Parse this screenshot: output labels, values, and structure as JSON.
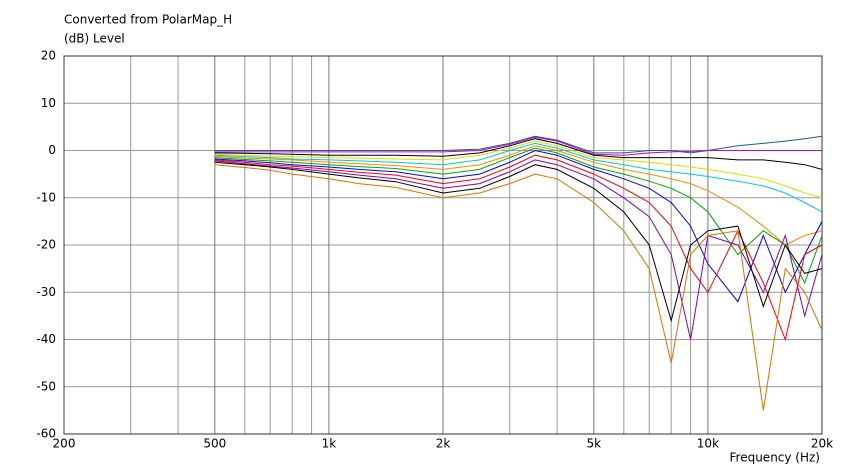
{
  "chart_data": {
    "type": "line",
    "title": "Converted from PolarMap_H",
    "ylabel": "(dB)  Level",
    "xlabel": "Frequency  (Hz)",
    "xlog": true,
    "grid": true,
    "xlim": [
      200,
      20000
    ],
    "ylim": [
      -60,
      20
    ],
    "yticks": [
      20,
      10,
      0,
      -10,
      -20,
      -30,
      -40,
      -50,
      -60
    ],
    "xticks": [
      200,
      500,
      {
        "value": 1000,
        "label": "1k"
      },
      {
        "value": 2000,
        "label": "2k"
      },
      {
        "value": 5000,
        "label": "5k"
      },
      {
        "value": 10000,
        "label": "10k"
      },
      {
        "value": 20000,
        "label": "20k"
      }
    ],
    "xminor": [
      300,
      400,
      600,
      700,
      800,
      900,
      3000,
      4000,
      6000,
      7000,
      8000,
      9000
    ],
    "x": [
      500,
      600,
      700,
      800,
      1000,
      1200,
      1500,
      2000,
      2500,
      3000,
      3500,
      4000,
      5000,
      6000,
      7000,
      8000,
      9000,
      10000,
      12000,
      14000,
      16000,
      18000,
      20000
    ],
    "series": [
      {
        "color": "#1f5c8c",
        "values": [
          0,
          0,
          0,
          0,
          0,
          0,
          0,
          0,
          0.3,
          1.5,
          3,
          2.2,
          -0.5,
          -0.5,
          0,
          0,
          -0.5,
          0,
          1,
          1.5,
          2,
          2.5,
          3
        ]
      },
      {
        "color": "#cc00cc",
        "values": [
          -0.3,
          -0.3,
          -0.3,
          -0.3,
          -0.3,
          -0.3,
          -0.3,
          -0.3,
          0,
          1.3,
          2.8,
          2,
          -0.8,
          -1,
          -0.5,
          -0.3,
          -0.2,
          0,
          0,
          0,
          0,
          0,
          0
        ]
      },
      {
        "color": "#000000",
        "values": [
          -0.5,
          -0.6,
          -0.7,
          -0.8,
          -1,
          -1,
          -1,
          -1.2,
          -0.5,
          1,
          2.5,
          1.5,
          -1,
          -1.5,
          -1.5,
          -1.5,
          -1.5,
          -1.5,
          -2,
          -2,
          -2.5,
          -3,
          -4
        ]
      },
      {
        "color": "#dddd00",
        "values": [
          -0.8,
          -1,
          -1.2,
          -1.3,
          -1.5,
          -1.6,
          -1.8,
          -2,
          -1,
          0.5,
          2,
          1,
          -1.5,
          -2,
          -2.5,
          -3,
          -3.5,
          -4,
          -5,
          -6,
          -7.5,
          -9,
          -10
        ]
      },
      {
        "color": "#00cccc",
        "values": [
          -1,
          -1.3,
          -1.5,
          -1.8,
          -2,
          -2.2,
          -2.5,
          -3,
          -2,
          0,
          1.5,
          0.5,
          -2,
          -3,
          -4,
          -4.5,
          -5,
          -5.5,
          -6.5,
          -7.5,
          -9,
          -11,
          -13
        ]
      },
      {
        "color": "#ff8800",
        "values": [
          -1.2,
          -1.6,
          -1.8,
          -2,
          -2.5,
          -2.8,
          -3.2,
          -4,
          -3,
          -1,
          1,
          0,
          -2.5,
          -4,
          -5,
          -6,
          -7,
          -8.5,
          -12,
          -16,
          -20,
          -18,
          -17
        ]
      },
      {
        "color": "#00aa00",
        "values": [
          -1.5,
          -1.9,
          -2.2,
          -2.5,
          -3,
          -3.4,
          -3.8,
          -5,
          -4,
          -1.5,
          0.5,
          -0.5,
          -3.5,
          -5,
          -6.5,
          -8,
          -10,
          -13,
          -22,
          -17,
          -20,
          -28,
          -18
        ]
      },
      {
        "color": "#0000ff",
        "values": [
          -1.8,
          -2.2,
          -2.6,
          -3,
          -3.5,
          -4,
          -4.5,
          -6,
          -5,
          -2.5,
          0,
          -1,
          -4,
          -6,
          -8,
          -11,
          -16,
          -24,
          -32,
          -18,
          -30,
          -22,
          -15
        ]
      },
      {
        "color": "#ff0000",
        "values": [
          -2,
          -2.5,
          -3,
          -3.3,
          -4,
          -4.6,
          -5.2,
          -7,
          -6,
          -3.5,
          -1,
          -2,
          -5,
          -8,
          -11,
          -16,
          -25,
          -30,
          -17,
          -28,
          -40,
          -22,
          -20
        ]
      },
      {
        "color": "#8800aa",
        "values": [
          -2.2,
          -2.8,
          -3.3,
          -3.7,
          -4.5,
          -5.2,
          -6,
          -8,
          -7,
          -4.5,
          -2,
          -3,
          -6,
          -10,
          -14,
          -22,
          -40,
          -18,
          -20,
          -30,
          -18,
          -35,
          -22
        ]
      },
      {
        "color": "#000000",
        "values": [
          -2.5,
          -3,
          -3.5,
          -4,
          -5,
          -5.8,
          -6.6,
          -9,
          -8,
          -5.5,
          -3,
          -4,
          -8,
          -13,
          -20,
          -36,
          -20,
          -17,
          -16,
          -33,
          -20,
          -26,
          -25
        ]
      },
      {
        "color": "#e07000",
        "values": [
          -3,
          -3.6,
          -4.2,
          -5,
          -6,
          -7,
          -7.8,
          -10,
          -9,
          -7,
          -5,
          -6,
          -11,
          -17,
          -25,
          -45,
          -22,
          -18,
          -17,
          -55,
          -25,
          -30,
          -38
        ]
      }
    ]
  }
}
